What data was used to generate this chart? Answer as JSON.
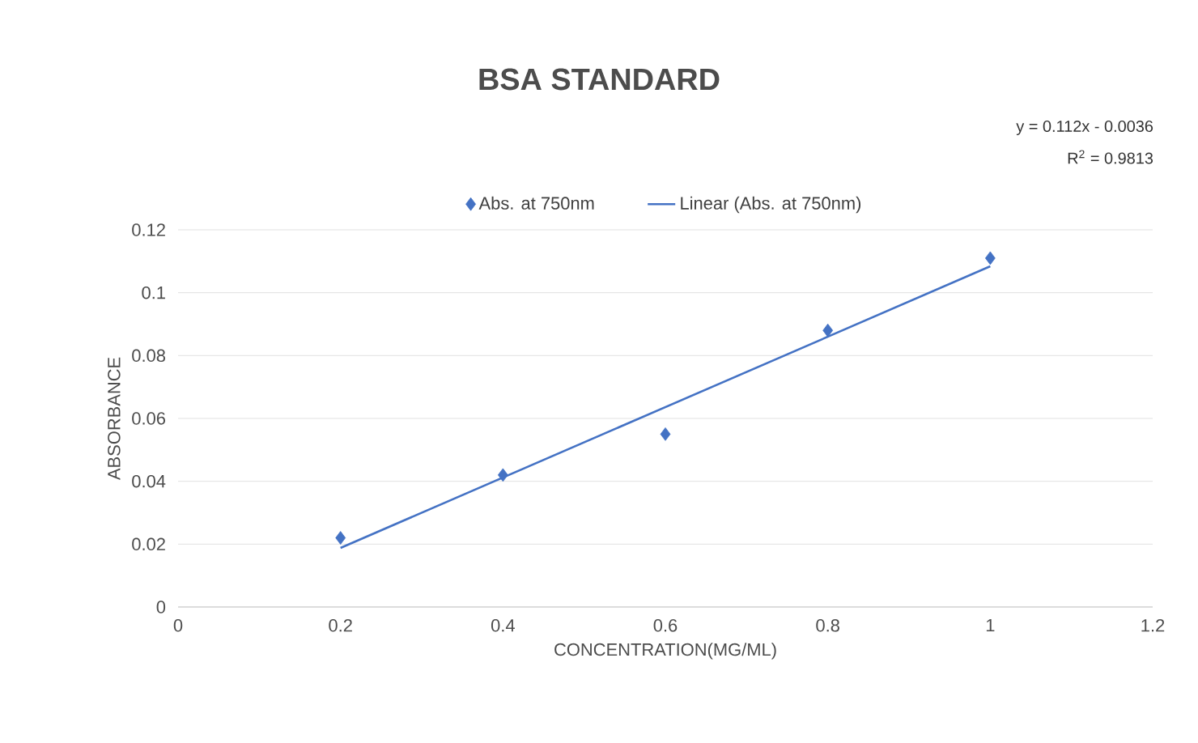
{
  "chart_data": {
    "type": "scatter",
    "title": "BSA STANDARD",
    "xlabel": "CONCENTRATION(MG/ML)",
    "ylabel": "ABSORBANCE",
    "annotations": [
      "y = 0.112x - 0.0036",
      "R$^{2}$ = 0.9813"
    ],
    "x": [
      0.2,
      0.4,
      0.6,
      0.8,
      1.0
    ],
    "series": [
      {
        "name": "Abs. at 750nm",
        "color": "#4472c4",
        "values": [
          0.022,
          0.042,
          0.055,
          0.088,
          0.111
        ],
        "marker": "diamond"
      },
      {
        "name": "Linear (Abs. at 750nm)",
        "type": "line",
        "color": "#4472c4",
        "x": [
          0.2,
          1.0
        ],
        "values": [
          0.0188,
          0.1084
        ],
        "marker": "none",
        "line_style": "solid"
      }
    ],
    "xlim": [
      0,
      1.2
    ],
    "ylim": [
      0,
      0.12
    ],
    "xticks": [
      0,
      0.2,
      0.4,
      0.6,
      0.8,
      1,
      1.2
    ],
    "yticks": [
      0,
      0.02,
      0.04,
      0.06,
      0.08,
      0.1,
      0.12
    ],
    "grid": "y",
    "legend": "top"
  }
}
